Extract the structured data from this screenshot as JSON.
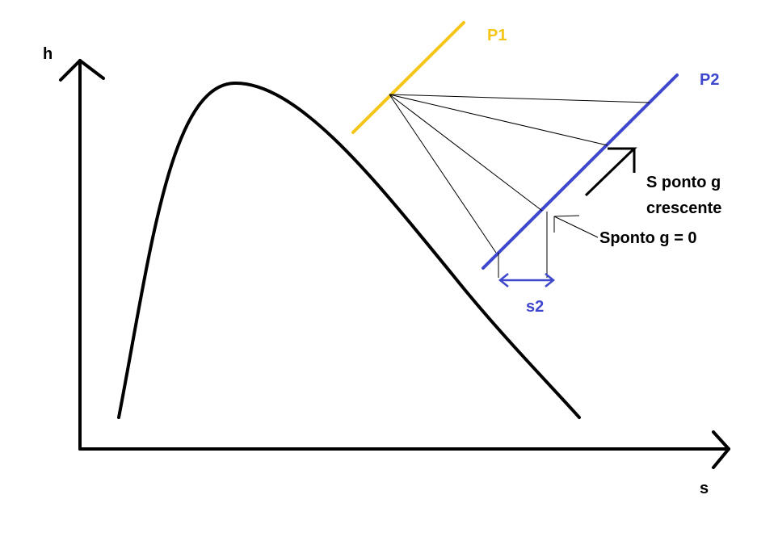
{
  "axes": {
    "y_label": "h",
    "x_label": "s"
  },
  "isobars": [
    {
      "label": "P1",
      "color": "#F5C518"
    },
    {
      "label": "P2",
      "color": "#3F48CC"
    }
  ],
  "annotations": {
    "increasing_label_line1": "S ponto g",
    "increasing_label_line2": "crescente",
    "zero_label": "Sponto g = 0",
    "s2_label": "s2"
  },
  "colors": {
    "ink": "#000000",
    "p1": "#F5C518",
    "p2": "#3F48CC"
  }
}
